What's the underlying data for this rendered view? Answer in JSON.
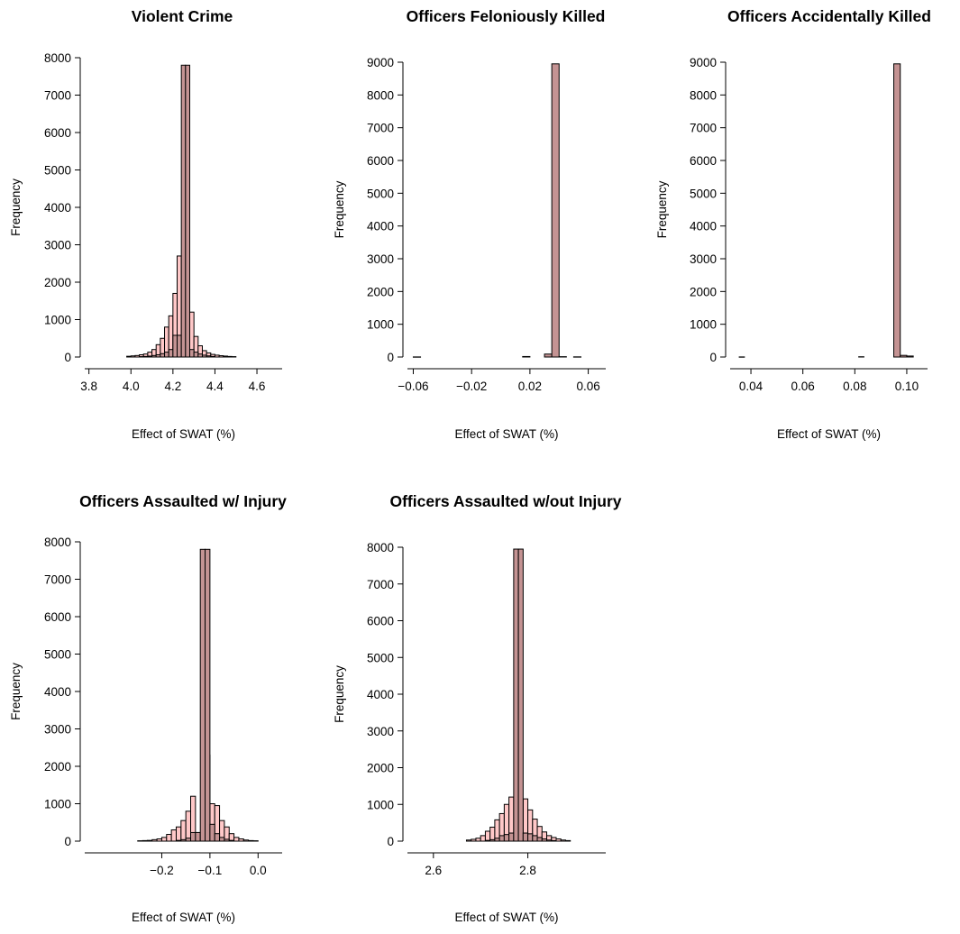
{
  "colors": {
    "light_bar": "#ffc8c8",
    "dark_bar": "#c49393",
    "edge": "#000000"
  },
  "chart_data": [
    {
      "type": "bar",
      "title": "Violent Crime",
      "xlabel": "Effect of SWAT (%)",
      "ylabel": "Frequency",
      "xlim": [
        3.78,
        4.72
      ],
      "ylim": [
        0,
        8000
      ],
      "x_ticks": [
        {
          "value": 3.8,
          "label": "3.8"
        },
        {
          "value": 4.0,
          "label": "4.0"
        },
        {
          "value": 4.2,
          "label": "4.2"
        },
        {
          "value": 4.4,
          "label": "4.4"
        },
        {
          "value": 4.6,
          "label": "4.6"
        }
      ],
      "y_ticks": [
        {
          "value": 0,
          "label": "0"
        },
        {
          "value": 1000,
          "label": "1000"
        },
        {
          "value": 2000,
          "label": "2000"
        },
        {
          "value": 3000,
          "label": "3000"
        },
        {
          "value": 4000,
          "label": "4000"
        },
        {
          "value": 5000,
          "label": "5000"
        },
        {
          "value": 6000,
          "label": "6000"
        },
        {
          "value": 7000,
          "label": "7000"
        },
        {
          "value": 8000,
          "label": "8000"
        }
      ],
      "series": [
        {
          "color": "light_bar",
          "bins": [
            [
              3.98,
              4.0,
              20
            ],
            [
              4.0,
              4.02,
              30
            ],
            [
              4.02,
              4.04,
              40
            ],
            [
              4.04,
              4.06,
              60
            ],
            [
              4.06,
              4.08,
              80
            ],
            [
              4.08,
              4.1,
              130
            ],
            [
              4.1,
              4.12,
              200
            ],
            [
              4.12,
              4.14,
              330
            ],
            [
              4.14,
              4.16,
              500
            ],
            [
              4.16,
              4.18,
              800
            ],
            [
              4.18,
              4.2,
              1100
            ],
            [
              4.2,
              4.22,
              1700
            ],
            [
              4.22,
              4.24,
              2700
            ],
            [
              4.24,
              4.26,
              580
            ],
            [
              4.26,
              4.28,
              100
            ],
            [
              4.28,
              4.3,
              1200
            ],
            [
              4.3,
              4.32,
              550
            ],
            [
              4.32,
              4.34,
              300
            ],
            [
              4.34,
              4.36,
              170
            ],
            [
              4.36,
              4.38,
              110
            ],
            [
              4.38,
              4.4,
              70
            ],
            [
              4.4,
              4.42,
              50
            ],
            [
              4.42,
              4.44,
              35
            ],
            [
              4.44,
              4.46,
              25
            ],
            [
              4.46,
              4.48,
              15
            ],
            [
              4.48,
              4.5,
              10
            ]
          ]
        },
        {
          "color": "dark_bar",
          "bins": [
            [
              4.04,
              4.06,
              10
            ],
            [
              4.06,
              4.08,
              15
            ],
            [
              4.08,
              4.1,
              25
            ],
            [
              4.1,
              4.12,
              40
            ],
            [
              4.12,
              4.14,
              60
            ],
            [
              4.14,
              4.16,
              90
            ],
            [
              4.16,
              4.18,
              130
            ],
            [
              4.18,
              4.2,
              200
            ],
            [
              4.2,
              4.22,
              580
            ],
            [
              4.22,
              4.24,
              580
            ],
            [
              4.24,
              4.26,
              7800
            ],
            [
              4.26,
              4.28,
              7800
            ],
            [
              4.28,
              4.3,
              200
            ],
            [
              4.3,
              4.32,
              130
            ],
            [
              4.32,
              4.34,
              80
            ],
            [
              4.34,
              4.36,
              50
            ],
            [
              4.36,
              4.38,
              30
            ],
            [
              4.38,
              4.4,
              15
            ]
          ]
        }
      ]
    },
    {
      "type": "bar",
      "title": "Officers Feloniously Killed",
      "xlabel": "Effect of SWAT (%)",
      "ylabel": "Frequency",
      "xlim": [
        -0.064,
        0.072
      ],
      "ylim": [
        0,
        9000
      ],
      "x_ticks": [
        {
          "value": -0.06,
          "label": "−0.06"
        },
        {
          "value": -0.02,
          "label": "−0.02"
        },
        {
          "value": 0.02,
          "label": "0.02"
        },
        {
          "value": 0.06,
          "label": "0.06"
        }
      ],
      "y_ticks": [
        {
          "value": 0,
          "label": "0"
        },
        {
          "value": 1000,
          "label": "1000"
        },
        {
          "value": 2000,
          "label": "2000"
        },
        {
          "value": 3000,
          "label": "3000"
        },
        {
          "value": 4000,
          "label": "4000"
        },
        {
          "value": 5000,
          "label": "5000"
        },
        {
          "value": 6000,
          "label": "6000"
        },
        {
          "value": 7000,
          "label": "7000"
        },
        {
          "value": 8000,
          "label": "8000"
        },
        {
          "value": 9000,
          "label": "9000"
        }
      ],
      "series": [
        {
          "color": "dark_bar",
          "bins": [
            [
              -0.06,
              -0.055,
              3
            ],
            [
              0.015,
              0.02,
              15
            ],
            [
              0.03,
              0.035,
              90
            ],
            [
              0.035,
              0.04,
              8950
            ],
            [
              0.04,
              0.045,
              10
            ],
            [
              0.05,
              0.055,
              5
            ]
          ]
        }
      ]
    },
    {
      "type": "bar",
      "title": "Officers Accidentally Killed",
      "xlabel": "Effect of SWAT (%)",
      "ylabel": "Frequency",
      "xlim": [
        0.032,
        0.108
      ],
      "ylim": [
        0,
        9000
      ],
      "x_ticks": [
        {
          "value": 0.04,
          "label": "0.04"
        },
        {
          "value": 0.06,
          "label": "0.06"
        },
        {
          "value": 0.08,
          "label": "0.08"
        },
        {
          "value": 0.1,
          "label": "0.10"
        }
      ],
      "y_ticks": [
        {
          "value": 0,
          "label": "0"
        },
        {
          "value": 1000,
          "label": "1000"
        },
        {
          "value": 2000,
          "label": "2000"
        },
        {
          "value": 3000,
          "label": "3000"
        },
        {
          "value": 4000,
          "label": "4000"
        },
        {
          "value": 5000,
          "label": "5000"
        },
        {
          "value": 6000,
          "label": "6000"
        },
        {
          "value": 7000,
          "label": "7000"
        },
        {
          "value": 8000,
          "label": "8000"
        },
        {
          "value": 9000,
          "label": "9000"
        }
      ],
      "series": [
        {
          "color": "dark_bar",
          "bins": [
            [
              0.0355,
              0.0375,
              3
            ],
            [
              0.0815,
              0.0835,
              8
            ],
            [
              0.095,
              0.0975,
              8950
            ],
            [
              0.0975,
              0.1,
              50
            ],
            [
              0.1,
              0.1025,
              30
            ]
          ]
        }
      ]
    },
    {
      "type": "bar",
      "title": "Officers Assaulted w/ Injury",
      "xlabel": "Effect of SWAT (%)",
      "ylabel": "Frequency",
      "xlim": [
        -0.36,
        0.05
      ],
      "ylim": [
        0,
        8000
      ],
      "x_ticks": [
        {
          "value": -0.2,
          "label": "−0.2"
        },
        {
          "value": -0.1,
          "label": "−0.1"
        },
        {
          "value": 0.0,
          "label": "0.0"
        }
      ],
      "y_ticks": [
        {
          "value": 0,
          "label": "0"
        },
        {
          "value": 1000,
          "label": "1000"
        },
        {
          "value": 2000,
          "label": "2000"
        },
        {
          "value": 3000,
          "label": "3000"
        },
        {
          "value": 4000,
          "label": "4000"
        },
        {
          "value": 5000,
          "label": "5000"
        },
        {
          "value": 6000,
          "label": "6000"
        },
        {
          "value": 7000,
          "label": "7000"
        },
        {
          "value": 8000,
          "label": "8000"
        }
      ],
      "series": [
        {
          "color": "light_bar",
          "bins": [
            [
              -0.25,
              -0.24,
              10
            ],
            [
              -0.24,
              -0.23,
              15
            ],
            [
              -0.23,
              -0.22,
              20
            ],
            [
              -0.22,
              -0.21,
              40
            ],
            [
              -0.21,
              -0.2,
              60
            ],
            [
              -0.2,
              -0.19,
              100
            ],
            [
              -0.19,
              -0.18,
              180
            ],
            [
              -0.18,
              -0.17,
              300
            ],
            [
              -0.17,
              -0.16,
              380
            ],
            [
              -0.16,
              -0.15,
              550
            ],
            [
              -0.15,
              -0.14,
              800
            ],
            [
              -0.14,
              -0.13,
              1200
            ],
            [
              -0.13,
              -0.12,
              230
            ],
            [
              -0.12,
              -0.11,
              100
            ],
            [
              -0.11,
              -0.1,
              2300
            ],
            [
              -0.1,
              -0.09,
              1000
            ],
            [
              -0.09,
              -0.08,
              950
            ],
            [
              -0.08,
              -0.07,
              550
            ],
            [
              -0.07,
              -0.06,
              380
            ],
            [
              -0.06,
              -0.05,
              200
            ],
            [
              -0.05,
              -0.04,
              100
            ],
            [
              -0.04,
              -0.03,
              60
            ],
            [
              -0.03,
              -0.02,
              30
            ],
            [
              -0.02,
              -0.01,
              15
            ],
            [
              -0.01,
              0.0,
              10
            ]
          ]
        },
        {
          "color": "dark_bar",
          "bins": [
            [
              -0.17,
              -0.16,
              20
            ],
            [
              -0.16,
              -0.15,
              40
            ],
            [
              -0.15,
              -0.14,
              80
            ],
            [
              -0.14,
              -0.13,
              230
            ],
            [
              -0.13,
              -0.12,
              230
            ],
            [
              -0.12,
              -0.11,
              7800
            ],
            [
              -0.11,
              -0.1,
              7800
            ],
            [
              -0.1,
              -0.09,
              450
            ],
            [
              -0.09,
              -0.08,
              200
            ],
            [
              -0.08,
              -0.07,
              100
            ],
            [
              -0.07,
              -0.06,
              50
            ],
            [
              -0.06,
              -0.05,
              20
            ]
          ]
        }
      ]
    },
    {
      "type": "bar",
      "title": "Officers Assaulted w/out Injury",
      "xlabel": "Effect of SWAT (%)",
      "ylabel": "Frequency",
      "xlim": [
        2.545,
        2.965
      ],
      "ylim": [
        0,
        8000
      ],
      "x_ticks": [
        {
          "value": 2.6,
          "label": "2.6"
        },
        {
          "value": 2.8,
          "label": "2.8"
        }
      ],
      "y_ticks": [
        {
          "value": 0,
          "label": "0"
        },
        {
          "value": 1000,
          "label": "1000"
        },
        {
          "value": 2000,
          "label": "2000"
        },
        {
          "value": 3000,
          "label": "3000"
        },
        {
          "value": 4000,
          "label": "4000"
        },
        {
          "value": 5000,
          "label": "5000"
        },
        {
          "value": 6000,
          "label": "6000"
        },
        {
          "value": 7000,
          "label": "7000"
        },
        {
          "value": 8000,
          "label": "8000"
        }
      ],
      "series": [
        {
          "color": "light_bar",
          "bins": [
            [
              2.67,
              2.68,
              30
            ],
            [
              2.68,
              2.69,
              50
            ],
            [
              2.69,
              2.7,
              80
            ],
            [
              2.7,
              2.71,
              150
            ],
            [
              2.71,
              2.72,
              270
            ],
            [
              2.72,
              2.73,
              380
            ],
            [
              2.73,
              2.74,
              580
            ],
            [
              2.74,
              2.75,
              750
            ],
            [
              2.75,
              2.76,
              1000
            ],
            [
              2.76,
              2.77,
              1200
            ],
            [
              2.77,
              2.78,
              230
            ],
            [
              2.78,
              2.79,
              120
            ],
            [
              2.79,
              2.8,
              1150
            ],
            [
              2.8,
              2.81,
              850
            ],
            [
              2.81,
              2.82,
              600
            ],
            [
              2.82,
              2.83,
              400
            ],
            [
              2.83,
              2.84,
              250
            ],
            [
              2.84,
              2.85,
              150
            ],
            [
              2.85,
              2.86,
              100
            ],
            [
              2.86,
              2.87,
              60
            ],
            [
              2.87,
              2.88,
              30
            ],
            [
              2.88,
              2.89,
              15
            ]
          ]
        },
        {
          "color": "dark_bar",
          "bins": [
            [
              2.71,
              2.72,
              20
            ],
            [
              2.72,
              2.73,
              40
            ],
            [
              2.73,
              2.74,
              80
            ],
            [
              2.74,
              2.75,
              150
            ],
            [
              2.75,
              2.76,
              180
            ],
            [
              2.76,
              2.77,
              220
            ],
            [
              2.77,
              2.78,
              7950
            ],
            [
              2.78,
              2.79,
              7950
            ],
            [
              2.79,
              2.8,
              220
            ],
            [
              2.8,
              2.81,
              200
            ],
            [
              2.81,
              2.82,
              150
            ],
            [
              2.82,
              2.83,
              100
            ],
            [
              2.83,
              2.84,
              60
            ],
            [
              2.84,
              2.85,
              30
            ],
            [
              2.85,
              2.86,
              15
            ]
          ]
        }
      ]
    }
  ]
}
